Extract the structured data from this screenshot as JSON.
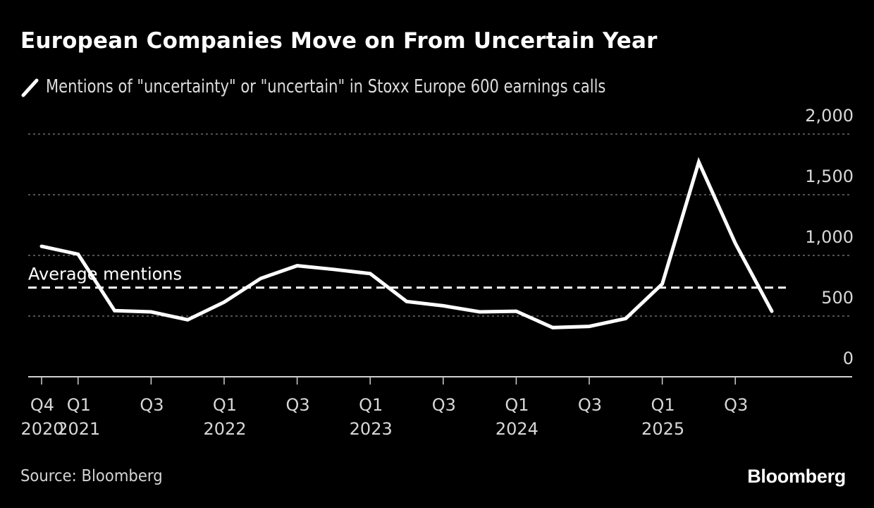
{
  "header": {
    "title": "European Companies Move on From Uncertain Year"
  },
  "legend": {
    "icon": "line-swatch-icon",
    "label": "Mentions of \"uncertainty\" or \"uncertain\" in Stoxx Europe 600 earnings calls",
    "color": "#ffffff"
  },
  "footer": {
    "source": "Source: Bloomberg",
    "brand": "Bloomberg"
  },
  "chart_data": {
    "type": "line",
    "title": "European Companies Move on From Uncertain Year",
    "xlabel": "",
    "ylabel": "",
    "ylim": [
      0,
      2000
    ],
    "yticks": [
      0,
      500,
      1000,
      1500,
      2000
    ],
    "ytick_labels": [
      "0",
      "500",
      "1,000",
      "1,500",
      "2,000"
    ],
    "y_axis_side": "right",
    "grid": true,
    "x": [
      "Q4 2020",
      "Q1 2021",
      "Q2 2021",
      "Q3 2021",
      "Q4 2021",
      "Q1 2022",
      "Q2 2022",
      "Q3 2022",
      "Q4 2022",
      "Q1 2023",
      "Q2 2023",
      "Q3 2023",
      "Q4 2023",
      "Q1 2024",
      "Q2 2024",
      "Q3 2024",
      "Q4 2024",
      "Q1 2025",
      "Q2 2025",
      "Q3 2025",
      "Q4 2025"
    ],
    "xticks": [
      {
        "index": 0,
        "line1": "Q4",
        "line2": "2020"
      },
      {
        "index": 1,
        "line1": "Q1",
        "line2": "2021"
      },
      {
        "index": 3,
        "line1": "Q3",
        "line2": ""
      },
      {
        "index": 5,
        "line1": "Q1",
        "line2": "2022"
      },
      {
        "index": 7,
        "line1": "Q3",
        "line2": ""
      },
      {
        "index": 9,
        "line1": "Q1",
        "line2": "2023"
      },
      {
        "index": 11,
        "line1": "Q3",
        "line2": ""
      },
      {
        "index": 13,
        "line1": "Q1",
        "line2": "2024"
      },
      {
        "index": 15,
        "line1": "Q3",
        "line2": ""
      },
      {
        "index": 17,
        "line1": "Q1",
        "line2": "2025"
      },
      {
        "index": 19,
        "line1": "Q3",
        "line2": ""
      }
    ],
    "series": [
      {
        "name": "Mentions of \"uncertainty\" or \"uncertain\" in Stoxx Europe 600 earnings calls",
        "color": "#ffffff",
        "values": [
          1075,
          1010,
          545,
          535,
          470,
          615,
          810,
          915,
          885,
          850,
          620,
          585,
          535,
          540,
          405,
          415,
          480,
          765,
          1770,
          1100,
          540
        ]
      }
    ],
    "reference_lines": [
      {
        "name": "Average mentions",
        "label": "Average mentions",
        "value": 735,
        "style": "dashed",
        "color": "#ffffff"
      }
    ],
    "legend_position": "top-left"
  }
}
